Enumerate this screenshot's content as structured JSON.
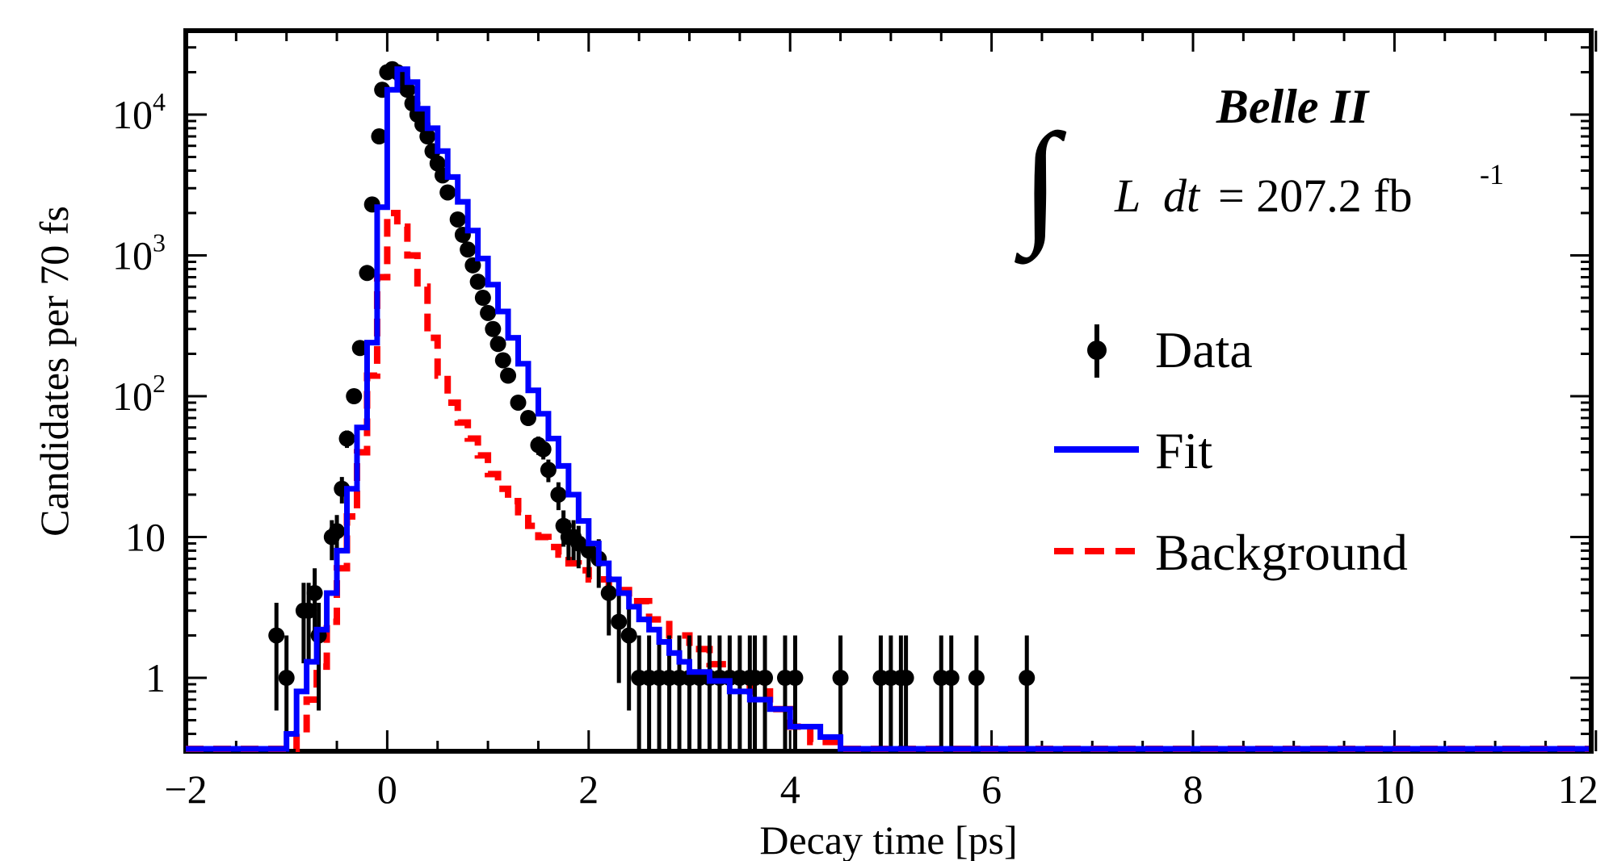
{
  "chart_data": {
    "type": "scatter",
    "title": "",
    "xlabel": "Decay time [ps]",
    "ylabel": "Candidates per 70 fs",
    "xlim": [
      -2,
      12
    ],
    "ylim": [
      0.3,
      40000
    ],
    "yscale": "log",
    "x_ticks": [
      -2,
      0,
      2,
      4,
      6,
      8,
      10,
      12
    ],
    "x_tick_labels": [
      "−2",
      "0",
      "2",
      "4",
      "6",
      "8",
      "10",
      "12"
    ],
    "y_ticks": [
      {
        "value": 1,
        "base": "1",
        "exp": ""
      },
      {
        "value": 10,
        "base": "10",
        "exp": ""
      },
      {
        "value": 100,
        "base": "10",
        "exp": "2"
      },
      {
        "value": 1000,
        "base": "10",
        "exp": "3"
      },
      {
        "value": 10000,
        "base": "10",
        "exp": "4"
      }
    ],
    "grid": false,
    "legend_position": "right",
    "experiment_label": "Belle II",
    "luminosity": {
      "integral": "∫",
      "L": "L",
      "dt": "dt",
      "value": "= 207.2 fb",
      "exp": "-1"
    },
    "legend": [
      {
        "label": "Data",
        "style": "points",
        "color": "#000000"
      },
      {
        "label": "Fit",
        "style": "solid",
        "color": "#0000ff"
      },
      {
        "label": "Background",
        "style": "dashed",
        "color": "#ff0000"
      }
    ],
    "series": [
      {
        "name": "Data",
        "style": "points",
        "color": "#000000",
        "x": [
          -1.1,
          -1.0,
          -0.83,
          -0.78,
          -0.72,
          -0.68,
          -0.55,
          -0.5,
          -0.45,
          -0.4,
          -0.33,
          -0.27,
          -0.2,
          -0.15,
          -0.08,
          -0.05,
          0.0,
          0.05,
          0.1,
          0.15,
          0.2,
          0.25,
          0.3,
          0.35,
          0.4,
          0.45,
          0.5,
          0.55,
          0.6,
          0.7,
          0.75,
          0.8,
          0.85,
          0.9,
          0.95,
          1.0,
          1.05,
          1.1,
          1.15,
          1.2,
          1.3,
          1.4,
          1.5,
          1.55,
          1.6,
          1.7,
          1.75,
          1.8,
          1.85,
          1.9,
          2.0,
          2.1,
          2.2,
          2.3,
          2.4,
          2.5,
          2.6,
          2.7,
          2.8,
          2.9,
          3.0,
          3.1,
          3.2,
          3.3,
          3.4,
          3.5,
          3.6,
          3.65,
          3.75,
          3.95,
          4.05,
          4.5,
          4.9,
          5.0,
          5.1,
          5.15,
          5.5,
          5.6,
          5.85,
          6.35
        ],
        "y": [
          2,
          1,
          3,
          3,
          4,
          2,
          10,
          11,
          22,
          50,
          100,
          220,
          750,
          2300,
          7000,
          15000,
          20000,
          21000,
          20000,
          18000,
          15000,
          12000,
          10000,
          8500,
          7000,
          5500,
          4500,
          3700,
          2800,
          1800,
          1400,
          1100,
          850,
          650,
          500,
          390,
          300,
          235,
          180,
          140,
          90,
          70,
          45,
          42,
          30,
          20,
          12,
          10,
          10,
          9,
          8,
          7,
          4,
          2.5,
          2,
          1,
          1,
          1,
          1,
          1,
          1,
          1,
          1,
          1,
          1,
          1,
          1,
          1,
          1,
          1,
          1,
          1,
          1,
          1,
          1,
          1,
          1,
          1,
          1,
          1
        ]
      },
      {
        "name": "Fit",
        "style": "step",
        "color": "#0000ff",
        "x": [
          -2.0,
          -1.0,
          -0.9,
          -0.8,
          -0.7,
          -0.6,
          -0.5,
          -0.4,
          -0.3,
          -0.2,
          -0.1,
          0.0,
          0.1,
          0.2,
          0.3,
          0.4,
          0.5,
          0.6,
          0.7,
          0.8,
          0.9,
          1.0,
          1.1,
          1.2,
          1.3,
          1.4,
          1.5,
          1.6,
          1.7,
          1.8,
          1.9,
          2.0,
          2.1,
          2.2,
          2.3,
          2.4,
          2.5,
          2.6,
          2.7,
          2.8,
          2.9,
          3.0,
          3.2,
          3.4,
          3.6,
          3.8,
          4.0,
          4.3,
          4.5
        ],
        "y": [
          0.3,
          0.4,
          0.8,
          1.3,
          2.2,
          4.0,
          8.0,
          22,
          60,
          240,
          2200,
          15000,
          21000,
          17000,
          11000,
          8000,
          5500,
          3600,
          2400,
          1500,
          950,
          620,
          400,
          260,
          170,
          110,
          75,
          50,
          32,
          20,
          13,
          9,
          6.5,
          5,
          4,
          3.2,
          2.6,
          2.2,
          1.8,
          1.5,
          1.3,
          1.1,
          0.95,
          0.8,
          0.7,
          0.6,
          0.45,
          0.38,
          0.3
        ]
      },
      {
        "name": "Background",
        "style": "dashed-step",
        "color": "#ff0000",
        "x": [
          -2.0,
          -0.9,
          -0.8,
          -0.7,
          -0.6,
          -0.5,
          -0.4,
          -0.3,
          -0.2,
          -0.1,
          0.0,
          0.1,
          0.2,
          0.3,
          0.4,
          0.5,
          0.6,
          0.7,
          0.8,
          0.9,
          1.0,
          1.1,
          1.2,
          1.3,
          1.4,
          1.5,
          1.6,
          1.7,
          1.8,
          1.9,
          2.0,
          2.2,
          2.4,
          2.6,
          2.8,
          3.0,
          3.2,
          3.4,
          3.6,
          3.8,
          4.0,
          4.2,
          4.5
        ],
        "y": [
          0.3,
          0.4,
          0.7,
          1.2,
          2.5,
          6,
          14,
          40,
          140,
          700,
          2000,
          1600,
          1000,
          600,
          260,
          140,
          90,
          65,
          50,
          38,
          28,
          22,
          18,
          15,
          12,
          10,
          8.5,
          7.5,
          6.5,
          5.8,
          5,
          4.2,
          3.5,
          2.6,
          2.0,
          1.6,
          1.25,
          1.0,
          0.8,
          0.6,
          0.45,
          0.35,
          0.3
        ]
      }
    ]
  }
}
